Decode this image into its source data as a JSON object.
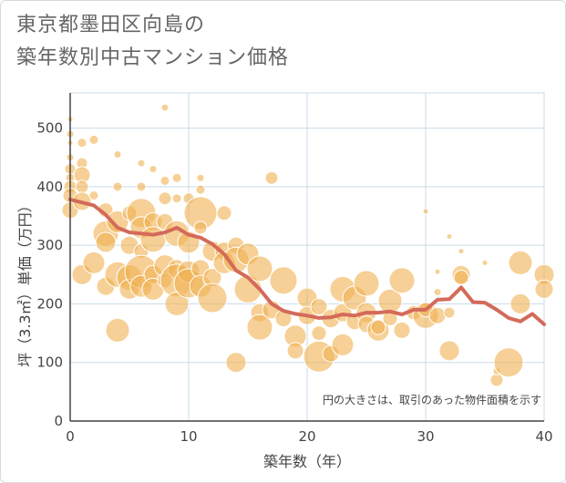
{
  "title_line1": "東京都墨田区向島の",
  "title_line2": "築年数別中古マンション価格",
  "chart_data": {
    "type": "scatter",
    "xlabel": "築年数（年）",
    "ylabel": "坪（3.3㎡）単価（万円）",
    "xlim": [
      0,
      40
    ],
    "ylim": [
      0,
      560
    ],
    "xticks": [
      "0",
      "10",
      "20",
      "30",
      "40"
    ],
    "yticks": [
      "0",
      "100",
      "200",
      "300",
      "400",
      "500"
    ],
    "note": "円の大きさは、取引のあった物件面積を示す",
    "grid": true,
    "colors": {
      "bubble": "#f0b050",
      "line": "#d46a5a",
      "grid": "#c8dbe8"
    },
    "bubbles": [
      {
        "x": 0,
        "y": 515,
        "s": 3
      },
      {
        "x": 0,
        "y": 490,
        "s": 4
      },
      {
        "x": 0,
        "y": 475,
        "s": 3
      },
      {
        "x": 0,
        "y": 450,
        "s": 4
      },
      {
        "x": 0,
        "y": 430,
        "s": 6
      },
      {
        "x": 0,
        "y": 415,
        "s": 5
      },
      {
        "x": 0,
        "y": 400,
        "s": 7
      },
      {
        "x": 0,
        "y": 385,
        "s": 8
      },
      {
        "x": 0,
        "y": 360,
        "s": 9
      },
      {
        "x": 1,
        "y": 475,
        "s": 5
      },
      {
        "x": 1,
        "y": 440,
        "s": 6
      },
      {
        "x": 1,
        "y": 420,
        "s": 9
      },
      {
        "x": 1,
        "y": 400,
        "s": 7
      },
      {
        "x": 1,
        "y": 375,
        "s": 10
      },
      {
        "x": 1,
        "y": 250,
        "s": 11
      },
      {
        "x": 2,
        "y": 480,
        "s": 5
      },
      {
        "x": 2,
        "y": 385,
        "s": 5
      },
      {
        "x": 2,
        "y": 270,
        "s": 12
      },
      {
        "x": 3,
        "y": 360,
        "s": 8
      },
      {
        "x": 3,
        "y": 320,
        "s": 14
      },
      {
        "x": 3,
        "y": 305,
        "s": 11
      },
      {
        "x": 3,
        "y": 230,
        "s": 10
      },
      {
        "x": 4,
        "y": 455,
        "s": 4
      },
      {
        "x": 4,
        "y": 400,
        "s": 5
      },
      {
        "x": 4,
        "y": 340,
        "s": 12
      },
      {
        "x": 4,
        "y": 250,
        "s": 14
      },
      {
        "x": 4,
        "y": 155,
        "s": 13
      },
      {
        "x": 5,
        "y": 355,
        "s": 8
      },
      {
        "x": 5,
        "y": 300,
        "s": 10
      },
      {
        "x": 5,
        "y": 245,
        "s": 14
      },
      {
        "x": 5,
        "y": 225,
        "s": 11
      },
      {
        "x": 6,
        "y": 440,
        "s": 4
      },
      {
        "x": 6,
        "y": 400,
        "s": 5
      },
      {
        "x": 6,
        "y": 355,
        "s": 16
      },
      {
        "x": 6,
        "y": 330,
        "s": 12
      },
      {
        "x": 6,
        "y": 290,
        "s": 8
      },
      {
        "x": 6,
        "y": 255,
        "s": 18
      },
      {
        "x": 6,
        "y": 230,
        "s": 12
      },
      {
        "x": 7,
        "y": 430,
        "s": 4
      },
      {
        "x": 7,
        "y": 340,
        "s": 10
      },
      {
        "x": 7,
        "y": 310,
        "s": 14
      },
      {
        "x": 7,
        "y": 250,
        "s": 10
      },
      {
        "x": 7,
        "y": 225,
        "s": 12
      },
      {
        "x": 8,
        "y": 535,
        "s": 4
      },
      {
        "x": 8,
        "y": 410,
        "s": 5
      },
      {
        "x": 8,
        "y": 380,
        "s": 7
      },
      {
        "x": 8,
        "y": 340,
        "s": 9
      },
      {
        "x": 8,
        "y": 265,
        "s": 12
      },
      {
        "x": 8,
        "y": 240,
        "s": 8
      },
      {
        "x": 9,
        "y": 415,
        "s": 5
      },
      {
        "x": 9,
        "y": 380,
        "s": 5
      },
      {
        "x": 9,
        "y": 320,
        "s": 14
      },
      {
        "x": 9,
        "y": 260,
        "s": 10
      },
      {
        "x": 9,
        "y": 240,
        "s": 18
      },
      {
        "x": 9,
        "y": 200,
        "s": 13
      },
      {
        "x": 10,
        "y": 380,
        "s": 6
      },
      {
        "x": 10,
        "y": 305,
        "s": 12
      },
      {
        "x": 10,
        "y": 255,
        "s": 12
      },
      {
        "x": 10,
        "y": 235,
        "s": 16
      },
      {
        "x": 11,
        "y": 415,
        "s": 4
      },
      {
        "x": 11,
        "y": 395,
        "s": 5
      },
      {
        "x": 11,
        "y": 355,
        "s": 18
      },
      {
        "x": 11,
        "y": 330,
        "s": 7
      },
      {
        "x": 11,
        "y": 260,
        "s": 10
      },
      {
        "x": 11,
        "y": 230,
        "s": 12
      },
      {
        "x": 12,
        "y": 290,
        "s": 11
      },
      {
        "x": 12,
        "y": 245,
        "s": 10
      },
      {
        "x": 12,
        "y": 210,
        "s": 16
      },
      {
        "x": 13,
        "y": 355,
        "s": 8
      },
      {
        "x": 13,
        "y": 290,
        "s": 10
      },
      {
        "x": 13,
        "y": 270,
        "s": 12
      },
      {
        "x": 14,
        "y": 300,
        "s": 9
      },
      {
        "x": 14,
        "y": 275,
        "s": 14
      },
      {
        "x": 14,
        "y": 100,
        "s": 11
      },
      {
        "x": 15,
        "y": 285,
        "s": 12
      },
      {
        "x": 15,
        "y": 225,
        "s": 15
      },
      {
        "x": 16,
        "y": 260,
        "s": 14
      },
      {
        "x": 16,
        "y": 185,
        "s": 10
      },
      {
        "x": 16,
        "y": 160,
        "s": 14
      },
      {
        "x": 17,
        "y": 415,
        "s": 7
      },
      {
        "x": 17,
        "y": 190,
        "s": 10
      },
      {
        "x": 18,
        "y": 240,
        "s": 15
      },
      {
        "x": 18,
        "y": 175,
        "s": 9
      },
      {
        "x": 19,
        "y": 145,
        "s": 12
      },
      {
        "x": 19,
        "y": 120,
        "s": 9
      },
      {
        "x": 20,
        "y": 210,
        "s": 11
      },
      {
        "x": 20,
        "y": 180,
        "s": 10
      },
      {
        "x": 21,
        "y": 195,
        "s": 9
      },
      {
        "x": 21,
        "y": 110,
        "s": 17
      },
      {
        "x": 21,
        "y": 150,
        "s": 8
      },
      {
        "x": 22,
        "y": 175,
        "s": 10
      },
      {
        "x": 22,
        "y": 115,
        "s": 9
      },
      {
        "x": 23,
        "y": 225,
        "s": 14
      },
      {
        "x": 23,
        "y": 185,
        "s": 10
      },
      {
        "x": 23,
        "y": 130,
        "s": 12
      },
      {
        "x": 24,
        "y": 210,
        "s": 13
      },
      {
        "x": 24,
        "y": 170,
        "s": 9
      },
      {
        "x": 25,
        "y": 235,
        "s": 14
      },
      {
        "x": 25,
        "y": 185,
        "s": 11
      },
      {
        "x": 25,
        "y": 165,
        "s": 9
      },
      {
        "x": 26,
        "y": 155,
        "s": 12
      },
      {
        "x": 26,
        "y": 160,
        "s": 8
      },
      {
        "x": 27,
        "y": 205,
        "s": 13
      },
      {
        "x": 27,
        "y": 175,
        "s": 8
      },
      {
        "x": 28,
        "y": 240,
        "s": 14
      },
      {
        "x": 28,
        "y": 155,
        "s": 9
      },
      {
        "x": 29,
        "y": 185,
        "s": 8
      },
      {
        "x": 30,
        "y": 358,
        "s": 3
      },
      {
        "x": 30,
        "y": 180,
        "s": 14
      },
      {
        "x": 30,
        "y": 190,
        "s": 8
      },
      {
        "x": 31,
        "y": 255,
        "s": 3
      },
      {
        "x": 31,
        "y": 220,
        "s": 4
      },
      {
        "x": 31,
        "y": 180,
        "s": 9
      },
      {
        "x": 32,
        "y": 315,
        "s": 3
      },
      {
        "x": 32,
        "y": 185,
        "s": 6
      },
      {
        "x": 32,
        "y": 120,
        "s": 11
      },
      {
        "x": 33,
        "y": 290,
        "s": 3
      },
      {
        "x": 33,
        "y": 250,
        "s": 10
      },
      {
        "x": 33,
        "y": 245,
        "s": 8
      },
      {
        "x": 35,
        "y": 270,
        "s": 3
      },
      {
        "x": 36,
        "y": 70,
        "s": 7
      },
      {
        "x": 36,
        "y": 85,
        "s": 4
      },
      {
        "x": 37,
        "y": 100,
        "s": 16
      },
      {
        "x": 38,
        "y": 270,
        "s": 13
      },
      {
        "x": 38,
        "y": 200,
        "s": 11
      },
      {
        "x": 40,
        "y": 250,
        "s": 11
      },
      {
        "x": 40,
        "y": 225,
        "s": 10
      }
    ],
    "trend_x": [
      0,
      1,
      2,
      3,
      4,
      5,
      6,
      7,
      8,
      9,
      10,
      11,
      12,
      13,
      14,
      15,
      16,
      17,
      18,
      19,
      20,
      21,
      22,
      23,
      24,
      25,
      26,
      27,
      28,
      29,
      30,
      31,
      32,
      33,
      34,
      35,
      36,
      37,
      38,
      39,
      40
    ],
    "trend_y": [
      378,
      373,
      368,
      352,
      330,
      322,
      320,
      318,
      322,
      330,
      318,
      313,
      302,
      285,
      257,
      245,
      225,
      200,
      188,
      183,
      180,
      176,
      177,
      182,
      180,
      185,
      185,
      187,
      182,
      190,
      190,
      207,
      208,
      228,
      203,
      202,
      190,
      176,
      170,
      183,
      165
    ]
  }
}
